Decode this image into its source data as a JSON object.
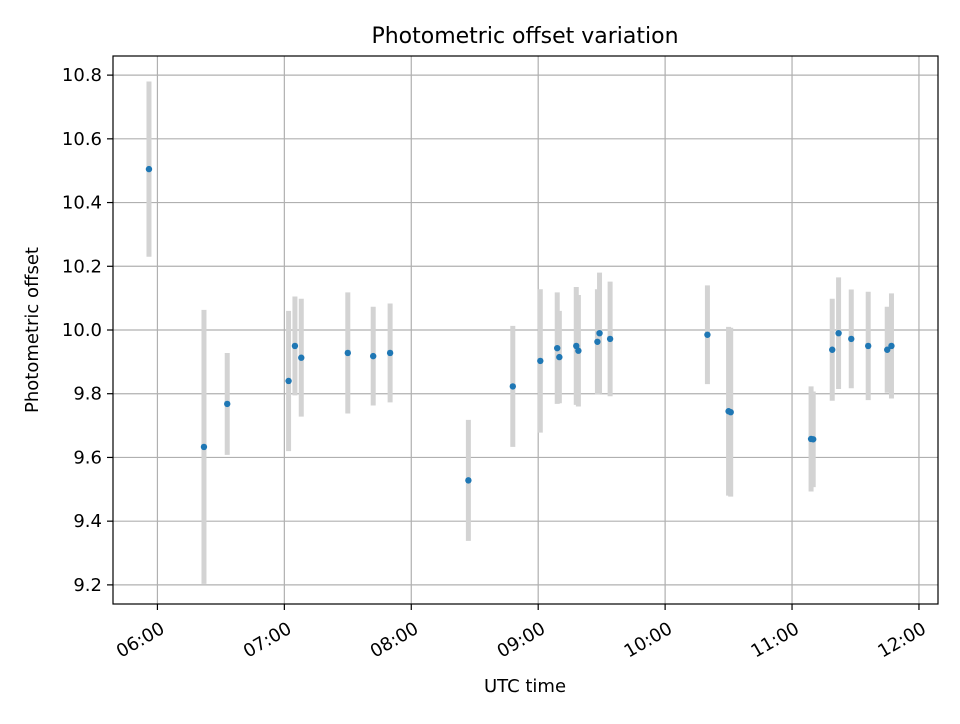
{
  "chart_data": {
    "type": "scatter",
    "title": "Photometric offset variation",
    "xlabel": "UTC time",
    "ylabel": "Photometric offset",
    "xlim": [
      "05:39",
      "12:09"
    ],
    "ylim": [
      9.14,
      10.86
    ],
    "grid": true,
    "x_ticks": [
      "06:00",
      "07:00",
      "08:00",
      "09:00",
      "10:00",
      "11:00",
      "12:00"
    ],
    "y_ticks": [
      "9.2",
      "9.4",
      "9.6",
      "9.8",
      "10.0",
      "10.2",
      "10.4",
      "10.6",
      "10.8"
    ],
    "colors": {
      "point": "#1f77b4",
      "errorbar": "#d3d3d3",
      "grid": "#b0b0b0"
    },
    "points": [
      {
        "t": "05:56",
        "y": 10.505,
        "err": 0.275
      },
      {
        "t": "06:22",
        "y": 9.633,
        "err": 0.43
      },
      {
        "t": "06:33",
        "y": 9.768,
        "err": 0.16
      },
      {
        "t": "07:02",
        "y": 9.84,
        "err": 0.22
      },
      {
        "t": "07:05",
        "y": 9.95,
        "err": 0.155
      },
      {
        "t": "07:08",
        "y": 9.913,
        "err": 0.185
      },
      {
        "t": "07:30",
        "y": 9.928,
        "err": 0.19
      },
      {
        "t": "07:42",
        "y": 9.918,
        "err": 0.155
      },
      {
        "t": "07:50",
        "y": 9.928,
        "err": 0.155
      },
      {
        "t": "08:27",
        "y": 9.528,
        "err": 0.19
      },
      {
        "t": "08:48",
        "y": 9.823,
        "err": 0.19
      },
      {
        "t": "09:01",
        "y": 9.903,
        "err": 0.225
      },
      {
        "t": "09:09",
        "y": 9.943,
        "err": 0.175
      },
      {
        "t": "09:10",
        "y": 9.915,
        "err": 0.145
      },
      {
        "t": "09:18",
        "y": 9.95,
        "err": 0.185
      },
      {
        "t": "09:19",
        "y": 9.935,
        "err": 0.175
      },
      {
        "t": "09:28",
        "y": 9.963,
        "err": 0.165
      },
      {
        "t": "09:29",
        "y": 9.99,
        "err": 0.19
      },
      {
        "t": "09:34",
        "y": 9.972,
        "err": 0.18
      },
      {
        "t": "10:20",
        "y": 9.985,
        "err": 0.155
      },
      {
        "t": "10:30",
        "y": 9.745,
        "err": 0.265
      },
      {
        "t": "10:31",
        "y": 9.742,
        "err": 0.265
      },
      {
        "t": "11:09",
        "y": 9.658,
        "err": 0.165
      },
      {
        "t": "11:10",
        "y": 9.657,
        "err": 0.15
      },
      {
        "t": "11:19",
        "y": 9.938,
        "err": 0.16
      },
      {
        "t": "11:22",
        "y": 9.99,
        "err": 0.175
      },
      {
        "t": "11:28",
        "y": 9.972,
        "err": 0.155
      },
      {
        "t": "11:36",
        "y": 9.95,
        "err": 0.17
      },
      {
        "t": "11:45",
        "y": 9.938,
        "err": 0.135
      },
      {
        "t": "11:47",
        "y": 9.95,
        "err": 0.165
      }
    ]
  }
}
